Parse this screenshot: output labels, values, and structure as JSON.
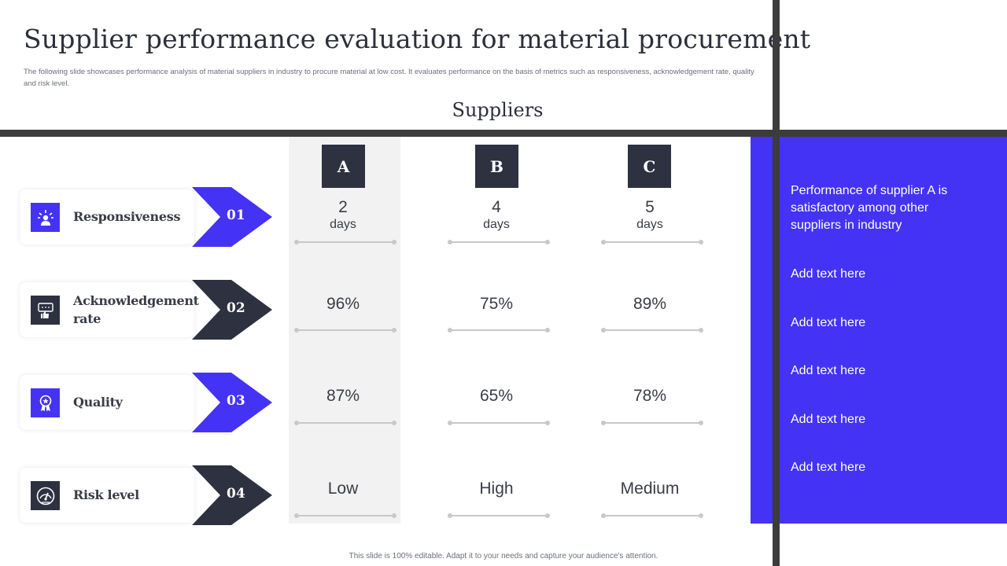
{
  "title": "Supplier performance evaluation for material procurement",
  "subtitle": "The following slide showcases performance analysis of material suppliers in industry to procure material at low cost. It evaluates performance on the basis of metrics such as responsiveness, acknowledgement rate, quality and risk level.",
  "suppliers_heading": "Suppliers",
  "suppliers": [
    "A",
    "B",
    "C"
  ],
  "metrics": [
    {
      "label_line1": "Responsiveness",
      "label_line2": "",
      "number": "01",
      "icon": "person-bell-icon",
      "color": "#4433f5"
    },
    {
      "label_line1": "Acknowledgement",
      "label_line2": "rate",
      "number": "02",
      "icon": "thumbs-up-chat-icon",
      "color": "#2e3140"
    },
    {
      "label_line1": "Quality",
      "label_line2": "",
      "number": "03",
      "icon": "award-badge-icon",
      "color": "#4433f5"
    },
    {
      "label_line1": "Risk level",
      "label_line2": "",
      "number": "04",
      "icon": "gauge-icon",
      "color": "#2e3140"
    }
  ],
  "values": {
    "responsiveness": [
      {
        "value": "2",
        "unit": "days"
      },
      {
        "value": "4",
        "unit": "days"
      },
      {
        "value": "5",
        "unit": "days"
      }
    ],
    "acknowledgement": [
      "96%",
      "75%",
      "89%"
    ],
    "quality": [
      "87%",
      "65%",
      "78%"
    ],
    "risk": [
      "Low",
      "High",
      "Medium"
    ]
  },
  "side_panel": {
    "highlight": "Performance of supplier A is satisfactory among other suppliers in industry",
    "items": [
      "Add text here",
      "Add text here",
      "Add text here",
      "Add text here",
      "Add text here"
    ]
  },
  "footer": "This slide is 100% editable. Adapt it to your needs and capture your audience's attention.",
  "colors": {
    "accent": "#4433f5",
    "dark": "#2e3140",
    "bar": "#3c3c3c"
  }
}
